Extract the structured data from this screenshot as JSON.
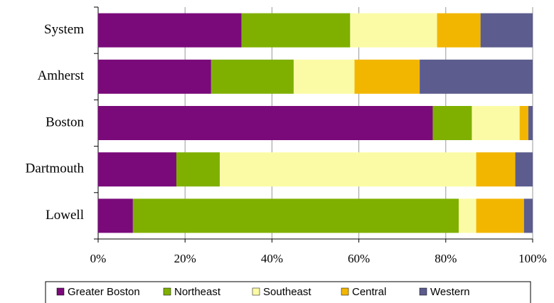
{
  "chart_data": {
    "type": "stacked-bar-horizontal",
    "categories": [
      "System",
      "Amherst",
      "Boston",
      "Dartmouth",
      "Lowell"
    ],
    "series": [
      {
        "name": "Greater Boston",
        "color": "#7a0a7a",
        "values": [
          33,
          26,
          77,
          18,
          8
        ]
      },
      {
        "name": "Northeast",
        "color": "#7fb000",
        "values": [
          25,
          19,
          9,
          10,
          75
        ]
      },
      {
        "name": "Southeast",
        "color": "#fbfba6",
        "values": [
          20,
          14,
          11,
          59,
          4
        ]
      },
      {
        "name": "Central",
        "color": "#f2b600",
        "values": [
          10,
          15,
          2,
          9,
          11
        ]
      },
      {
        "name": "Western",
        "color": "#5c5c8e",
        "values": [
          12,
          26,
          1,
          4,
          2
        ]
      }
    ],
    "xlim": [
      0,
      100
    ],
    "xticks": [
      {
        "value": 0,
        "label": "0%"
      },
      {
        "value": 20,
        "label": "20%"
      },
      {
        "value": 40,
        "label": "40%"
      },
      {
        "value": 60,
        "label": "60%"
      },
      {
        "value": 80,
        "label": "80%"
      },
      {
        "value": 100,
        "label": "100%"
      }
    ],
    "grid": true,
    "legend": "bottom"
  }
}
